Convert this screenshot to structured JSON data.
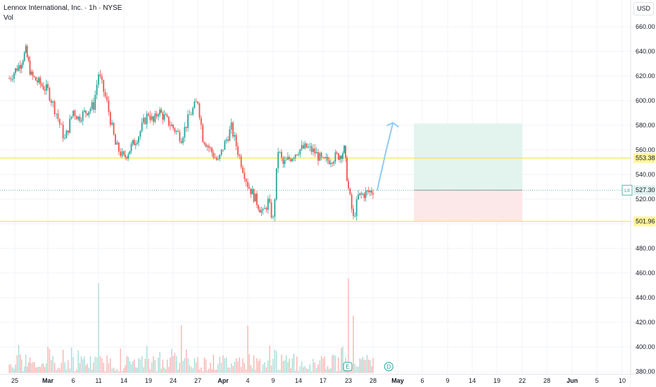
{
  "header": {
    "symbol_line": "Lennox International, Inc. · 1h · NYSE",
    "volume_label": "Vol",
    "currency": "USD"
  },
  "colors": {
    "up": "#26a69a",
    "down": "#ef5350",
    "level_line": "#f7e51e",
    "level_label_bg": "#fff59d",
    "price_label_bg": "#e0f2f1",
    "target_zone": "#e3f4ef",
    "stop_zone": "#fde8e9",
    "projection_arrow": "#90caf9"
  },
  "chart_data": {
    "type": "candlestick",
    "title": "Lennox International, Inc. · 1h · NYSE",
    "y_axis": {
      "ticks": [
        380,
        400,
        420,
        440,
        460,
        480,
        500,
        520,
        540,
        560,
        580,
        600,
        620,
        640,
        660
      ],
      "tick_labels": [
        "380.00",
        "400.00",
        "420.00",
        "440.00",
        "460.00",
        "480.00",
        "500.00",
        "520.00",
        "540.00",
        "560.00",
        "580.00",
        "600.00",
        "620.00",
        "640.00",
        "660.00"
      ],
      "range": [
        378,
        667
      ]
    },
    "x_axis": {
      "tick_labels": [
        "25",
        "Mar",
        "6",
        "11",
        "14",
        "19",
        "24",
        "27",
        "Apr",
        "4",
        "9",
        "14",
        "17",
        "23",
        "28",
        "May",
        "6",
        "9",
        "14",
        "19",
        "22",
        "28",
        "Jun",
        "5",
        "10"
      ],
      "bold_labels": [
        "Mar",
        "Apr",
        "May",
        "Jun"
      ]
    },
    "price_path": [
      [
        "2025-02-24",
        618
      ],
      [
        "2025-02-26",
        630
      ],
      [
        "2025-02-27",
        640
      ],
      [
        "2025-02-28",
        620
      ],
      [
        "2025-03-03",
        608
      ],
      [
        "2025-03-04",
        590
      ],
      [
        "2025-03-05",
        568
      ],
      [
        "2025-03-06",
        592
      ],
      [
        "2025-03-07",
        586
      ],
      [
        "2025-03-10",
        596
      ],
      [
        "2025-03-11",
        622
      ],
      [
        "2025-03-12",
        598
      ],
      [
        "2025-03-13",
        564
      ],
      [
        "2025-03-14",
        553
      ],
      [
        "2025-03-17",
        572
      ],
      [
        "2025-03-18",
        582
      ],
      [
        "2025-03-19",
        590
      ],
      [
        "2025-03-20",
        582
      ],
      [
        "2025-03-21",
        592
      ],
      [
        "2025-03-24",
        578
      ],
      [
        "2025-03-25",
        570
      ],
      [
        "2025-03-26",
        588
      ],
      [
        "2025-03-27",
        600
      ],
      [
        "2025-03-28",
        570
      ],
      [
        "2025-03-31",
        550
      ],
      [
        "2025-04-01",
        562
      ],
      [
        "2025-04-02",
        578
      ],
      [
        "2025-04-03",
        554
      ],
      [
        "2025-04-04",
        532
      ],
      [
        "2025-04-07",
        508
      ],
      [
        "2025-04-08",
        518
      ],
      [
        "2025-04-09",
        503
      ],
      [
        "2025-04-10",
        560
      ],
      [
        "2025-04-11",
        548
      ],
      [
        "2025-04-14",
        560
      ],
      [
        "2025-04-15",
        562
      ],
      [
        "2025-04-16",
        558
      ],
      [
        "2025-04-17",
        550
      ],
      [
        "2025-04-21",
        556
      ],
      [
        "2025-04-22",
        560
      ],
      [
        "2025-04-23",
        528
      ],
      [
        "2025-04-24",
        504
      ],
      [
        "2025-04-25",
        522
      ],
      [
        "2025-04-28",
        527.3
      ]
    ],
    "volume_spikes": [
      {
        "date": "2025-03-11",
        "value": 452
      },
      {
        "date": "2025-03-25",
        "value": 418
      },
      {
        "date": "2025-04-04",
        "value": 418
      },
      {
        "date": "2025-04-23",
        "value": 456
      },
      {
        "date": "2025-04-24",
        "value": 426
      }
    ],
    "horizontal_levels": [
      {
        "value": 553.38,
        "label": "553.38"
      },
      {
        "value": 501.96,
        "label": "501.96"
      }
    ],
    "last_price": {
      "ticker": "LII",
      "value": 527.3,
      "label": "527.30"
    },
    "position_tool": {
      "start": "2025-05-06",
      "end": "2025-05-22",
      "entry": 527.3,
      "target": 581.5,
      "stop": 501.96
    },
    "projection_arrow": {
      "from": [
        "2025-04-28",
        527
      ],
      "to": [
        "2025-04-30",
        582
      ]
    },
    "event_markers": [
      {
        "label": "E",
        "date": "2025-04-23"
      },
      {
        "label": "D",
        "date": "2025-04-30"
      }
    ],
    "legend_position": "top-left",
    "grid": true
  }
}
